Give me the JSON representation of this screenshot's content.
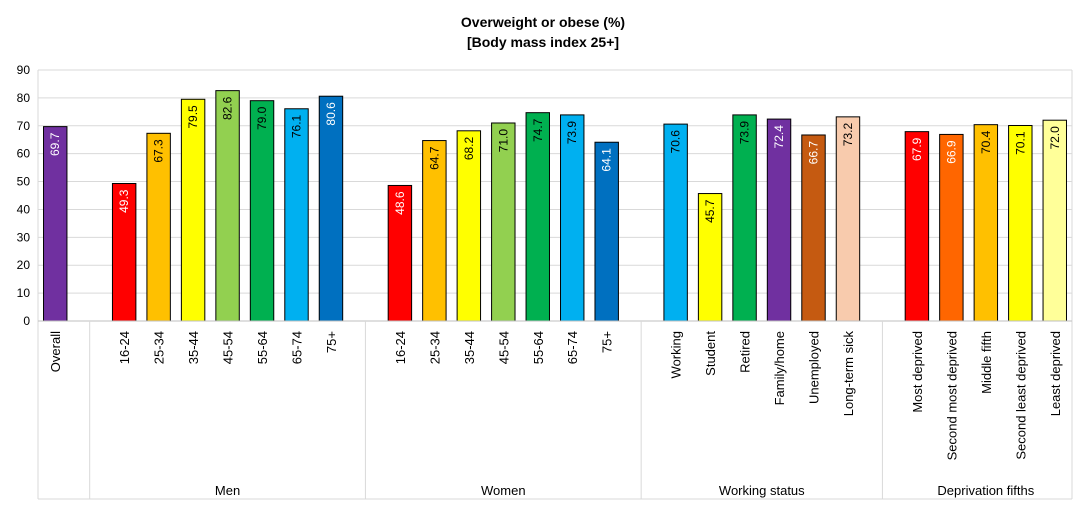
{
  "chart_data": {
    "type": "bar",
    "title": "Overweight or obese (%)",
    "subtitle": "[Body mass index 25+]",
    "ylim": [
      0,
      90
    ],
    "yticks": [
      0,
      10,
      20,
      30,
      40,
      50,
      60,
      70,
      80,
      90
    ],
    "grid": true,
    "legend": "none",
    "groups": [
      {
        "name": "",
        "bars": [
          {
            "label": "Overall",
            "value": 69.7,
            "color": "#7030A0"
          }
        ]
      },
      {
        "name": "Men",
        "bars": [
          {
            "label": "16-24",
            "value": 49.3,
            "color": "#FF0000"
          },
          {
            "label": "25-34",
            "value": 67.3,
            "color": "#FFC000"
          },
          {
            "label": "35-44",
            "value": 79.5,
            "color": "#FFFF00"
          },
          {
            "label": "45-54",
            "value": 82.6,
            "color": "#92D050"
          },
          {
            "label": "55-64",
            "value": 79.0,
            "color": "#00B050"
          },
          {
            "label": "65-74",
            "value": 76.1,
            "color": "#00B0F0"
          },
          {
            "label": "75+",
            "value": 80.6,
            "color": "#0070C0"
          }
        ]
      },
      {
        "name": "Women",
        "bars": [
          {
            "label": "16-24",
            "value": 48.6,
            "color": "#FF0000"
          },
          {
            "label": "25-34",
            "value": 64.7,
            "color": "#FFC000"
          },
          {
            "label": "35-44",
            "value": 68.2,
            "color": "#FFFF00"
          },
          {
            "label": "45-54",
            "value": 71.0,
            "color": "#92D050"
          },
          {
            "label": "55-64",
            "value": 74.7,
            "color": "#00B050"
          },
          {
            "label": "65-74",
            "value": 73.9,
            "color": "#00B0F0"
          },
          {
            "label": "75+",
            "value": 64.1,
            "color": "#0070C0"
          }
        ]
      },
      {
        "name": "Working status",
        "bars": [
          {
            "label": "Working",
            "value": 70.6,
            "color": "#00B0F0"
          },
          {
            "label": "Student",
            "value": 45.7,
            "color": "#FFFF00"
          },
          {
            "label": "Retired",
            "value": 73.9,
            "color": "#00B050"
          },
          {
            "label": "Family/home",
            "value": 72.4,
            "color": "#7030A0"
          },
          {
            "label": "Unemployed",
            "value": 66.7,
            "color": "#C55A11"
          },
          {
            "label": "Long-term sick",
            "value": 73.2,
            "color": "#F8CBAD"
          }
        ]
      },
      {
        "name": "Deprivation fifths",
        "bars": [
          {
            "label": "Most deprived",
            "value": 67.9,
            "color": "#FF0000"
          },
          {
            "label": "Second most deprived",
            "value": 66.9,
            "color": "#FF6600"
          },
          {
            "label": "Middle fifth",
            "value": 70.4,
            "color": "#FFC000"
          },
          {
            "label": "Second least deprived",
            "value": 70.1,
            "color": "#FFFF00"
          },
          {
            "label": "Least deprived",
            "value": 72.0,
            "color": "#FFFF99"
          }
        ]
      }
    ]
  }
}
